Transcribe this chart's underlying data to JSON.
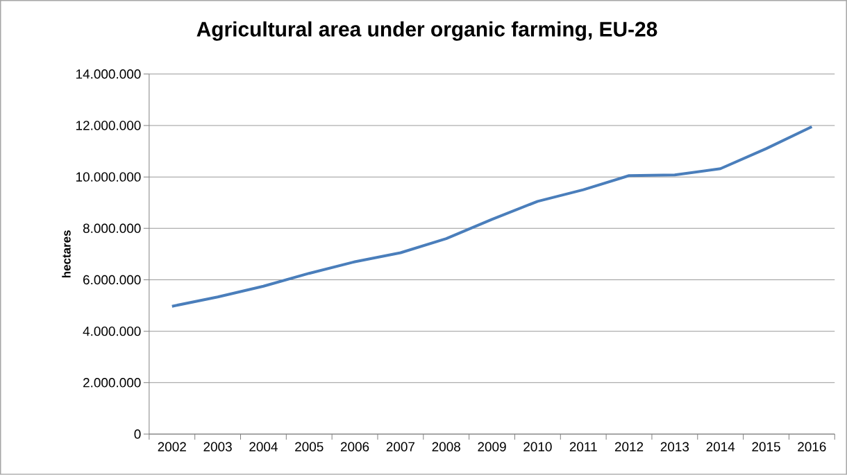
{
  "chart_data": {
    "type": "line",
    "title": "Agricultural area under organic farming, EU-28",
    "ylabel": "hectares",
    "categories": [
      "2002",
      "2003",
      "2004",
      "2005",
      "2006",
      "2007",
      "2008",
      "2009",
      "2010",
      "2011",
      "2012",
      "2013",
      "2014",
      "2015",
      "2016"
    ],
    "series": [
      {
        "color": "#4a7ebb",
        "values": [
          4970000,
          5330000,
          5750000,
          6250000,
          6700000,
          7050000,
          7600000,
          8350000,
          9050000,
          9500000,
          10050000,
          10080000,
          10320000,
          11100000,
          11950000
        ]
      }
    ],
    "ylim": [
      0,
      14000000
    ],
    "yticks": [
      {
        "value": 0,
        "label": "0"
      },
      {
        "value": 2000000,
        "label": "2.000.000"
      },
      {
        "value": 4000000,
        "label": "4.000.000"
      },
      {
        "value": 6000000,
        "label": "6.000.000"
      },
      {
        "value": 8000000,
        "label": "8.000.000"
      },
      {
        "value": 10000000,
        "label": "10.000.000"
      },
      {
        "value": 12000000,
        "label": "12.000.000"
      },
      {
        "value": 14000000,
        "label": "14.000.000"
      }
    ],
    "grid": "y",
    "marker": "none",
    "line_style": "solid"
  }
}
